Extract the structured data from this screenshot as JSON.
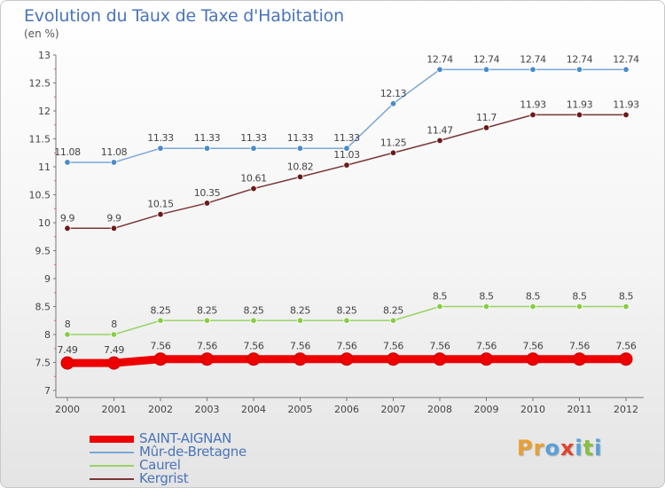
{
  "chart_data": {
    "type": "line",
    "title": "Evolution du Taux de Taxe d'Habitation",
    "ylabel": "(en %)",
    "x": [
      "2000",
      "2001",
      "2002",
      "2003",
      "2004",
      "2005",
      "2006",
      "2007",
      "2008",
      "2009",
      "2010",
      "2011",
      "2012"
    ],
    "ylim": [
      7,
      13
    ],
    "yticks": [
      "7",
      "7.5",
      "8",
      "8.5",
      "9",
      "9.5",
      "10",
      "10.5",
      "11",
      "11.5",
      "12",
      "12.5",
      "13"
    ],
    "grid": false,
    "legend_position": "bottom-left",
    "series": [
      {
        "name": "SAINT-AIGNAN",
        "color": "#ee0000",
        "values": [
          7.49,
          7.49,
          7.56,
          7.56,
          7.56,
          7.56,
          7.56,
          7.56,
          7.56,
          7.56,
          7.56,
          7.56,
          7.56
        ],
        "labels": [
          "7.49",
          "7.49",
          "7.56",
          "7.56",
          "7.56",
          "7.56",
          "7.56",
          "7.56",
          "7.56",
          "7.56",
          "7.56",
          "7.56",
          "7.56"
        ]
      },
      {
        "name": "Mûr-de-Bretagne",
        "color": "#7aa6d8",
        "values": [
          11.08,
          11.08,
          11.33,
          11.33,
          11.33,
          11.33,
          11.33,
          12.13,
          12.74,
          12.74,
          12.74,
          12.74,
          12.74
        ],
        "labels": [
          "11.08",
          "11.08",
          "11.33",
          "11.33",
          "11.33",
          "11.33",
          "11.33",
          "12.13",
          "12.74",
          "12.74",
          "12.74",
          "12.74",
          "12.74"
        ]
      },
      {
        "name": "Caurel",
        "color": "#99d466",
        "values": [
          8,
          8,
          8.25,
          8.25,
          8.25,
          8.25,
          8.25,
          8.25,
          8.5,
          8.5,
          8.5,
          8.5,
          8.5
        ],
        "labels": [
          "8",
          "8",
          "8.25",
          "8.25",
          "8.25",
          "8.25",
          "8.25",
          "8.25",
          "8.5",
          "8.5",
          "8.5",
          "8.5",
          "8.5"
        ]
      },
      {
        "name": "Kergrist",
        "color": "#7a3636",
        "values": [
          9.9,
          9.9,
          10.15,
          10.35,
          10.61,
          10.82,
          11.03,
          11.25,
          11.47,
          11.7,
          11.93,
          11.93,
          11.93
        ],
        "labels": [
          "9.9",
          "9.9",
          "10.15",
          "10.35",
          "10.61",
          "10.82",
          "11.03",
          "11.25",
          "11.47",
          "11.7",
          "11.93",
          "11.93",
          "11.93"
        ]
      }
    ]
  },
  "logo": {
    "letters": [
      "P",
      "r",
      "o",
      "x",
      "i",
      "t",
      "i"
    ],
    "colors": [
      "#e8a032",
      "#e8a032",
      "#5aa0d8",
      "#e0442a",
      "#5aa0d8",
      "#88c040",
      "#5aa0d8"
    ]
  }
}
